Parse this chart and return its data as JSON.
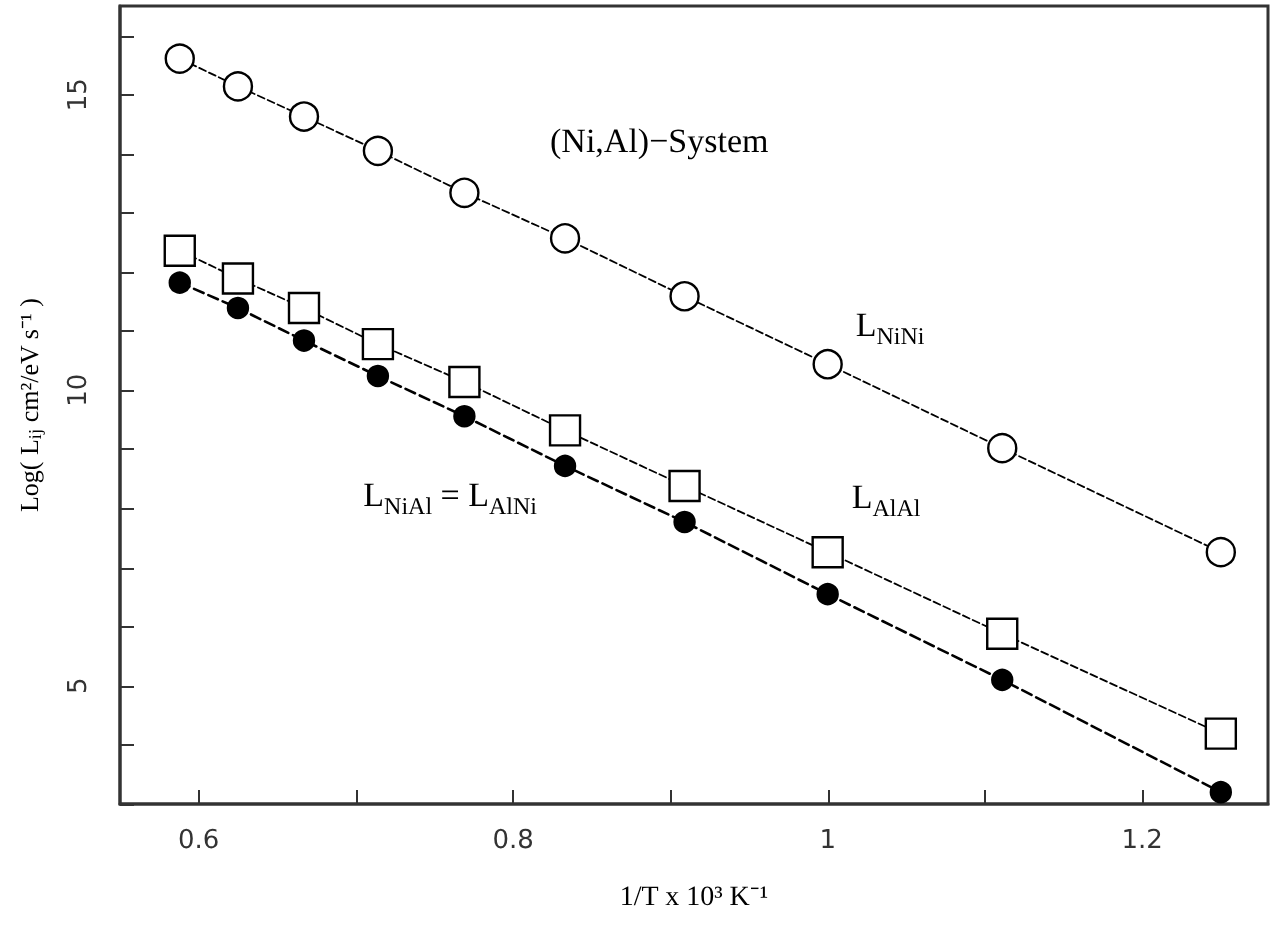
{
  "chart_data": {
    "type": "line",
    "xlabel": "1/T x 10³ K⁻¹",
    "ylabel": "Log( L$_{ij}$ cm²/eV s⁻¹ )",
    "x": [
      0.588,
      0.625,
      0.667,
      0.714,
      0.769,
      0.833,
      0.909,
      1.0,
      1.111,
      1.25
    ],
    "series": [
      {
        "name": "L$_{NiNi}$",
        "color": "#000000",
        "marker": "circle",
        "values": [
          15.61,
          15.14,
          14.63,
          14.05,
          13.34,
          12.57,
          11.59,
          10.44,
          9.02,
          7.26
        ]
      },
      {
        "name": "L$_{AlAl}$",
        "color": "#000000",
        "marker": "square",
        "values": [
          12.36,
          11.89,
          11.39,
          10.78,
          10.14,
          9.32,
          8.38,
          7.26,
          5.88,
          4.19
        ]
      },
      {
        "name": "L$_{NiAl}$ = L$_{AlNi}$",
        "color": "#000000",
        "marker": "circle",
        "values": [
          11.82,
          11.39,
          10.84,
          10.24,
          9.56,
          8.72,
          7.77,
          6.55,
          5.1,
          3.2
        ]
      }
    ],
    "line_style": "dashed",
    "xlim": [
      0.55,
      1.28
    ],
    "xticks": [
      0.6,
      {
        "value": 0.7,
        "label": null
      },
      0.8,
      {
        "value": 0.9,
        "label": null
      },
      1,
      {
        "value": 1.1,
        "label": null
      },
      1.2
    ],
    "ylim": [
      3,
      16.5
    ],
    "yticks": [
      {
        "value": 3,
        "label": null
      },
      {
        "value": 4,
        "label": null
      },
      5,
      {
        "value": 6,
        "label": null
      },
      {
        "value": 7,
        "label": null
      },
      {
        "value": 8,
        "label": null
      },
      {
        "value": 9,
        "label": null
      },
      10,
      {
        "value": 11,
        "label": null
      },
      {
        "value": 12,
        "label": null
      },
      {
        "value": 13,
        "label": null
      },
      {
        "value": 14,
        "label": null
      },
      15,
      {
        "value": 16,
        "label": null
      }
    ],
    "grid": false,
    "legend": false,
    "annotations": [
      "(Ni,Al)−System"
    ]
  }
}
